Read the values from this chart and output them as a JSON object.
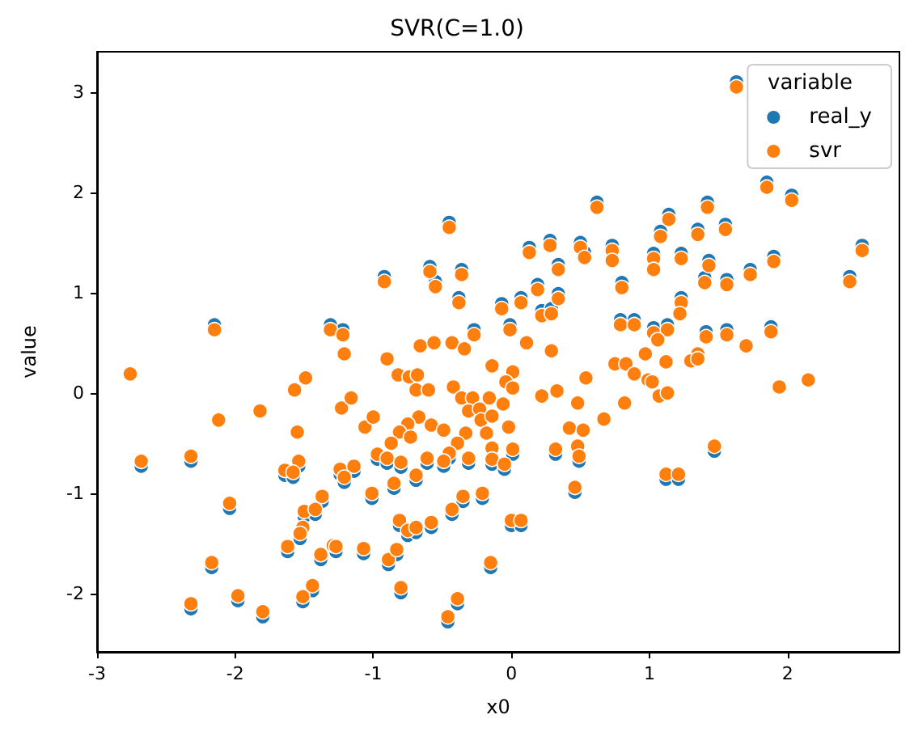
{
  "chart_data": {
    "type": "scatter",
    "title": "SVR(C=1.0)",
    "xlabel": "x0",
    "ylabel": "value",
    "legend_title": "variable",
    "legend": "top right",
    "grid": false,
    "marker": "circle",
    "xlim": [
      -3,
      2.81
    ],
    "ylim": [
      -2.58,
      3.4
    ],
    "xticks": [
      -3,
      -2,
      -1,
      0,
      1,
      2
    ],
    "yticks": [
      -2,
      -1,
      0,
      1,
      2,
      3
    ],
    "x": [
      -2.76,
      -2.68,
      -2.32,
      -2.12,
      -1.82,
      -2.04,
      -2.17,
      -2.32,
      -1.98,
      -1.8,
      -1.57,
      -1.49,
      -1.55,
      -1.54,
      -1.64,
      -1.58,
      -1.37,
      -1.5,
      -1.42,
      -1.51,
      -1.53,
      -1.62,
      -1.38,
      -1.29,
      -1.27,
      -1.44,
      -1.51,
      -1.21,
      -1.23,
      -1.16,
      -1.06,
      -1.0,
      -0.9,
      -0.97,
      -0.9,
      -0.8,
      -1.24,
      -1.14,
      -1.21,
      -1.01,
      -0.85,
      -0.69,
      -0.81,
      -0.75,
      -0.69,
      -0.58,
      -0.43,
      -0.35,
      -0.21,
      -1.07,
      -0.89,
      -0.83,
      -0.8,
      -0.46,
      -0.39,
      -0.15,
      -0.82,
      -0.74,
      -0.68,
      -0.69,
      -0.6,
      -0.66,
      -0.56,
      -0.43,
      -0.34,
      -0.14,
      -0.42,
      -0.36,
      -0.28,
      -0.16,
      -0.31,
      -0.23,
      -0.22,
      -0.14,
      -0.67,
      -0.75,
      -0.81,
      -0.73,
      -0.87,
      -0.58,
      -0.49,
      -0.33,
      -0.39,
      -0.45,
      -0.49,
      -0.61,
      -0.31,
      -0.18,
      -0.14,
      -0.14,
      -2.15,
      -0.92,
      -0.45,
      -0.59,
      -0.55,
      -0.36,
      -0.38,
      -0.07,
      -1.31,
      -1.22,
      -0.27,
      1.63,
      1.85,
      2.03,
      0.62,
      1.14,
      1.42,
      1.55,
      1.35,
      1.08,
      2.54,
      0.13,
      0.28,
      0.5,
      0.53,
      0.73,
      0.73,
      0.34,
      1.03,
      1.03,
      1.23,
      1.43,
      1.9,
      1.73,
      2.45,
      1.4,
      1.56,
      0.8,
      0.19,
      0.34,
      0.07,
      0.22,
      0.29,
      1.23,
      1.22,
      -0.01,
      0.11,
      0.79,
      0.89,
      1.03,
      1.13,
      1.06,
      1.41,
      1.56,
      1.7,
      1.88,
      0.29,
      0.97,
      1.35,
      0.01,
      -0.04,
      0.01,
      0.22,
      0.33,
      0.54,
      0.75,
      0.83,
      1.12,
      0.89,
      0.99,
      1.02,
      1.07,
      1.13,
      1.3,
      1.35,
      1.94,
      2.15,
      -0.06,
      -0.02,
      0.01,
      -0.05,
      0.48,
      0.67,
      0.82,
      0.42,
      0.52,
      0.32,
      0.48,
      0.49,
      0.46,
      1.47,
      1.12,
      1.21,
      0.0,
      0.07
    ],
    "series": [
      {
        "name": "real_y",
        "color": "#1f77b4",
        "values": [
          null,
          -0.73,
          -0.68,
          null,
          null,
          -1.15,
          -1.74,
          -2.15,
          -2.07,
          -2.23,
          null,
          null,
          null,
          -0.73,
          -0.82,
          -0.84,
          -1.08,
          -1.23,
          -1.21,
          null,
          -1.45,
          -1.58,
          -1.66,
          null,
          -1.58,
          -1.97,
          -2.08,
          null,
          null,
          null,
          null,
          null,
          null,
          -0.66,
          -0.7,
          -0.74,
          -0.81,
          -0.78,
          -0.89,
          -1.05,
          -0.95,
          -0.87,
          -1.32,
          -1.42,
          -1.39,
          -1.34,
          -1.21,
          -1.08,
          -1.05,
          -1.6,
          -1.71,
          -1.61,
          -1.99,
          -2.28,
          -2.1,
          -1.74,
          null,
          null,
          null,
          null,
          null,
          null,
          null,
          null,
          null,
          null,
          null,
          null,
          null,
          null,
          null,
          null,
          null,
          null,
          null,
          null,
          null,
          null,
          null,
          null,
          null,
          null,
          null,
          -0.65,
          -0.73,
          -0.7,
          -0.7,
          null,
          null,
          -0.71,
          0.68,
          1.16,
          1.7,
          1.26,
          1.11,
          1.23,
          0.95,
          0.89,
          0.68,
          0.63,
          0.63,
          3.1,
          2.1,
          1.97,
          1.9,
          1.78,
          1.9,
          1.68,
          1.63,
          1.61,
          1.47,
          1.45,
          1.52,
          1.5,
          1.4,
          1.47,
          null,
          1.28,
          1.39,
          null,
          1.39,
          1.32,
          1.36,
          1.23,
          1.16,
          1.15,
          1.13,
          1.1,
          1.08,
          0.99,
          0.95,
          0.82,
          0.84,
          0.95,
          null,
          0.68,
          null,
          0.73,
          0.73,
          0.65,
          0.68,
          null,
          0.61,
          0.63,
          null,
          0.66,
          null,
          null,
          null,
          null,
          null,
          null,
          null,
          null,
          null,
          null,
          null,
          null,
          null,
          null,
          null,
          null,
          null,
          null,
          null,
          null,
          null,
          null,
          null,
          -0.61,
          -0.76,
          null,
          null,
          null,
          null,
          null,
          -0.61,
          null,
          -0.68,
          -0.99,
          -0.58,
          -0.86,
          -0.86,
          -1.32,
          -1.32
        ]
      },
      {
        "name": "svr",
        "color": "#ff7f0e",
        "values": [
          0.19,
          -0.68,
          -0.63,
          -0.27,
          -0.18,
          -1.1,
          -1.69,
          -2.1,
          -2.02,
          -2.18,
          0.03,
          0.15,
          -0.39,
          -0.68,
          -0.77,
          -0.79,
          -1.03,
          -1.18,
          -1.16,
          -1.34,
          -1.4,
          -1.53,
          -1.61,
          -1.52,
          -1.53,
          -1.92,
          -2.03,
          0.39,
          -0.15,
          -0.05,
          -0.34,
          -0.24,
          0.34,
          -0.61,
          -0.65,
          -0.69,
          -0.76,
          -0.73,
          -0.84,
          -1.0,
          -0.9,
          -0.82,
          -1.27,
          -1.37,
          -1.34,
          -1.29,
          -1.16,
          -1.03,
          -1.0,
          -1.55,
          -1.66,
          -1.56,
          -1.94,
          -2.23,
          -2.05,
          -1.69,
          0.18,
          0.16,
          0.18,
          0.03,
          0.03,
          0.47,
          0.5,
          0.5,
          0.44,
          0.27,
          0.06,
          -0.05,
          -0.05,
          -0.05,
          -0.18,
          -0.16,
          -0.27,
          -0.23,
          -0.24,
          -0.31,
          -0.39,
          -0.44,
          -0.5,
          -0.32,
          -0.37,
          -0.4,
          -0.5,
          -0.6,
          -0.68,
          -0.65,
          -0.65,
          -0.4,
          -0.55,
          -0.66,
          0.63,
          1.11,
          1.65,
          1.21,
          1.06,
          1.18,
          0.9,
          0.84,
          0.63,
          0.58,
          0.58,
          3.05,
          2.05,
          1.92,
          1.85,
          1.73,
          1.85,
          1.63,
          1.58,
          1.56,
          1.42,
          1.4,
          1.47,
          1.45,
          1.35,
          1.42,
          1.32,
          1.23,
          1.34,
          1.23,
          1.34,
          1.27,
          1.31,
          1.18,
          1.11,
          1.1,
          1.08,
          1.05,
          1.03,
          0.94,
          0.9,
          0.77,
          0.79,
          0.9,
          0.79,
          0.63,
          0.5,
          0.68,
          0.68,
          0.6,
          0.63,
          0.53,
          0.56,
          0.58,
          0.47,
          0.61,
          0.42,
          0.39,
          0.39,
          0.21,
          0.11,
          0.05,
          -0.03,
          0.02,
          0.15,
          0.29,
          0.29,
          0.31,
          0.19,
          0.13,
          0.11,
          -0.03,
          0.0,
          0.32,
          0.34,
          0.06,
          0.13,
          -0.11,
          -0.34,
          -0.56,
          -0.71,
          -0.1,
          -0.26,
          -0.1,
          -0.35,
          -0.37,
          -0.56,
          -0.53,
          -0.63,
          -0.94,
          -0.53,
          -0.81,
          -0.81,
          -1.27,
          -1.27
        ]
      }
    ]
  }
}
